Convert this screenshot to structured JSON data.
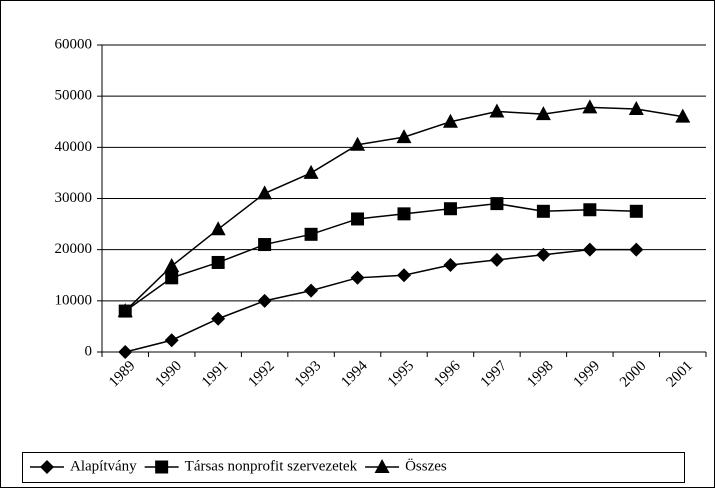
{
  "chart_data": {
    "type": "line",
    "categories": [
      "1989",
      "1990",
      "1991",
      "1992",
      "1993",
      "1994",
      "1995",
      "1996",
      "1997",
      "1998",
      "1999",
      "2000",
      "2001"
    ],
    "series": [
      {
        "name": "Alapítvány",
        "color": "#000000",
        "marker": "diamond",
        "values": [
          0,
          2300,
          6500,
          10000,
          12000,
          14500,
          15000,
          17000,
          18000,
          19000,
          20000,
          20000,
          null
        ]
      },
      {
        "name": "Társas nonprofit szervezetek",
        "color": "#000000",
        "marker": "square",
        "values": [
          8000,
          14500,
          17500,
          21000,
          23000,
          26000,
          27000,
          28000,
          29000,
          27500,
          27800,
          27500,
          null
        ]
      },
      {
        "name": "Összes",
        "color": "#000000",
        "marker": "triangle",
        "values": [
          8000,
          16800,
          24000,
          31000,
          35000,
          40500,
          42000,
          45000,
          47000,
          46500,
          47800,
          47500,
          46000
        ]
      }
    ],
    "ylim": [
      0,
      60000
    ],
    "yticks": [
      0,
      10000,
      20000,
      30000,
      40000,
      50000,
      60000
    ],
    "grid": true,
    "legend": "bottom"
  }
}
